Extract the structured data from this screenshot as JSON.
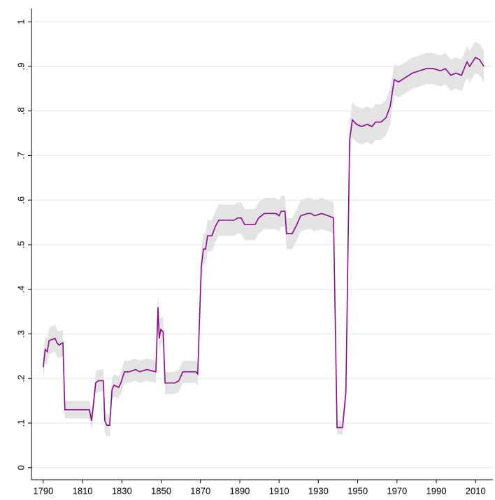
{
  "chart_data": {
    "type": "line",
    "x": [
      1790,
      1791,
      1792,
      1793,
      1796,
      1797,
      1798,
      1800,
      1801,
      1813.5,
      1814.6,
      1816.7,
      1818,
      1820.6,
      1821.3,
      1822.4,
      1823.8,
      1825,
      1826,
      1828.4,
      1829.5,
      1831.3,
      1833.8,
      1837,
      1839,
      1842.7,
      1847.3,
      1848.4,
      1849,
      1849.8,
      1851,
      1852,
      1855,
      1857,
      1859,
      1861,
      1867.6,
      1868.6,
      1870.4,
      1871.5,
      1872.6,
      1873.6,
      1875.8,
      1877.5,
      1879.3,
      1883.6,
      1887,
      1889,
      1890.7,
      1892.5,
      1897.8,
      1899.6,
      1902.5,
      1905,
      1908.5,
      1910,
      1911,
      1913,
      1913.8,
      1916.7,
      1919,
      1921,
      1924.5,
      1926.3,
      1928,
      1931.6,
      1935,
      1937.7,
      1939.5,
      1942.3,
      1944,
      1945.9,
      1947.3,
      1949.4,
      1952,
      1954.8,
      1957.3,
      1959,
      1961.9,
      1964.4,
      1966.5,
      1968.6,
      1970.8,
      1974.3,
      1977.9,
      1981.4,
      1985,
      1988.6,
      1992.1,
      1994.6,
      1997.4,
      2000,
      2002.8,
      2005.6,
      2007,
      2009.9,
      2012,
      2014.2
    ],
    "values": [
      0.225,
      0.265,
      0.26,
      0.285,
      0.29,
      0.28,
      0.275,
      0.28,
      0.13,
      0.13,
      0.105,
      0.19,
      0.195,
      0.195,
      0.105,
      0.095,
      0.095,
      0.175,
      0.185,
      0.18,
      0.19,
      0.215,
      0.215,
      0.22,
      0.215,
      0.22,
      0.215,
      0.36,
      0.29,
      0.31,
      0.305,
      0.19,
      0.19,
      0.19,
      0.195,
      0.215,
      0.215,
      0.21,
      0.45,
      0.49,
      0.49,
      0.52,
      0.52,
      0.54,
      0.555,
      0.555,
      0.555,
      0.56,
      0.56,
      0.545,
      0.545,
      0.56,
      0.57,
      0.57,
      0.57,
      0.565,
      0.575,
      0.575,
      0.525,
      0.525,
      0.545,
      0.565,
      0.57,
      0.57,
      0.565,
      0.57,
      0.565,
      0.56,
      0.09,
      0.09,
      0.17,
      0.735,
      0.78,
      0.77,
      0.765,
      0.77,
      0.765,
      0.775,
      0.775,
      0.785,
      0.81,
      0.87,
      0.865,
      0.875,
      0.885,
      0.89,
      0.895,
      0.895,
      0.89,
      0.895,
      0.88,
      0.885,
      0.88,
      0.91,
      0.9,
      0.92,
      0.915,
      0.9
    ],
    "lower": [
      0.195,
      0.235,
      0.23,
      0.255,
      0.26,
      0.25,
      0.245,
      0.25,
      0.11,
      0.11,
      0.085,
      0.165,
      0.17,
      0.17,
      0.08,
      0.07,
      0.07,
      0.15,
      0.16,
      0.155,
      0.165,
      0.19,
      0.19,
      0.195,
      0.19,
      0.195,
      0.19,
      0.325,
      0.26,
      0.28,
      0.275,
      0.165,
      0.165,
      0.165,
      0.17,
      0.19,
      0.19,
      0.185,
      0.41,
      0.455,
      0.455,
      0.485,
      0.485,
      0.505,
      0.52,
      0.52,
      0.52,
      0.525,
      0.525,
      0.51,
      0.51,
      0.525,
      0.535,
      0.535,
      0.535,
      0.53,
      0.54,
      0.54,
      0.49,
      0.49,
      0.51,
      0.53,
      0.535,
      0.535,
      0.53,
      0.535,
      0.53,
      0.525,
      0.075,
      0.075,
      0.15,
      0.695,
      0.74,
      0.73,
      0.725,
      0.73,
      0.725,
      0.735,
      0.735,
      0.745,
      0.77,
      0.835,
      0.83,
      0.84,
      0.85,
      0.855,
      0.86,
      0.86,
      0.855,
      0.86,
      0.845,
      0.85,
      0.845,
      0.875,
      0.865,
      0.885,
      0.88,
      0.865
    ],
    "upper": [
      0.255,
      0.295,
      0.29,
      0.315,
      0.32,
      0.31,
      0.305,
      0.31,
      0.15,
      0.15,
      0.125,
      0.215,
      0.22,
      0.22,
      0.13,
      0.12,
      0.12,
      0.2,
      0.21,
      0.205,
      0.215,
      0.24,
      0.24,
      0.245,
      0.24,
      0.245,
      0.24,
      0.395,
      0.32,
      0.34,
      0.335,
      0.215,
      0.215,
      0.215,
      0.22,
      0.24,
      0.24,
      0.235,
      0.49,
      0.525,
      0.525,
      0.555,
      0.555,
      0.575,
      0.59,
      0.59,
      0.59,
      0.595,
      0.595,
      0.58,
      0.58,
      0.595,
      0.605,
      0.605,
      0.605,
      0.6,
      0.61,
      0.61,
      0.56,
      0.56,
      0.58,
      0.6,
      0.605,
      0.605,
      0.6,
      0.605,
      0.6,
      0.595,
      0.105,
      0.105,
      0.19,
      0.775,
      0.82,
      0.81,
      0.805,
      0.81,
      0.805,
      0.815,
      0.815,
      0.825,
      0.85,
      0.905,
      0.9,
      0.91,
      0.92,
      0.925,
      0.93,
      0.93,
      0.925,
      0.93,
      0.915,
      0.92,
      0.915,
      0.945,
      0.935,
      0.955,
      0.95,
      0.935
    ],
    "color": "#8b0a8b",
    "band_color": "#e3e3e3",
    "grid_color": "#e6eef2",
    "xlim": [
      1784,
      2018.8
    ],
    "ylim": [
      -0.027,
      1.03
    ],
    "xticks": [
      1790,
      1810,
      1830,
      1850,
      1870,
      1890,
      1910,
      1930,
      1950,
      1970,
      1990,
      2010
    ],
    "yticks": [
      0,
      {
        "value": 0.1,
        "label": ".1"
      },
      {
        "value": 0.2,
        "label": ".2"
      },
      {
        "value": 0.3,
        "label": ".3"
      },
      {
        "value": 0.4,
        "label": ".4"
      },
      {
        "value": 0.5,
        "label": ".5"
      },
      {
        "value": 0.6,
        "label": ".6"
      },
      {
        "value": 0.7,
        "label": ".7"
      },
      {
        "value": 0.8,
        "label": ".8"
      },
      {
        "value": 0.9,
        "label": ".9"
      },
      1
    ],
    "grid": true
  }
}
